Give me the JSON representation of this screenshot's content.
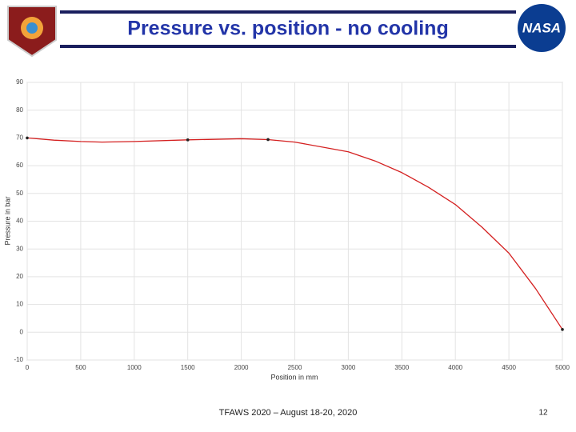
{
  "header": {
    "title": "Pressure vs. position - no cooling",
    "logo_right": "NASA"
  },
  "footer": {
    "text": "TFAWS 2020 – August 18-20, 2020",
    "page": "12"
  },
  "chart_data": {
    "type": "line",
    "xlabel": "Position in mm",
    "ylabel": "Pressure in bar",
    "series": [
      {
        "color": "#d42020",
        "x": [
          0,
          250,
          500,
          700,
          1000,
          1500,
          2000,
          2250,
          2500,
          3000,
          3250,
          3500,
          3750,
          4000,
          4250,
          4500,
          4750,
          5000
        ],
        "values": [
          70,
          69.2,
          68.7,
          68.5,
          68.7,
          69.3,
          69.7,
          69.4,
          68.5,
          65,
          61.7,
          57.5,
          52.2,
          46,
          37.8,
          28.5,
          15.7,
          1
        ]
      },
      {
        "color": "#222222",
        "markers": true,
        "x": [
          0,
          1500,
          2250,
          5000
        ],
        "values": [
          70,
          69.3,
          69.4,
          1
        ]
      }
    ],
    "xlim": [
      0,
      5000
    ],
    "xticks": [
      0,
      500,
      1000,
      1500,
      2000,
      2500,
      3000,
      3500,
      4000,
      4500,
      5000
    ],
    "ylim": [
      -10,
      90
    ],
    "yticks": [
      -10,
      0,
      10,
      20,
      30,
      40,
      50,
      60,
      70,
      80,
      90
    ],
    "grid": true
  }
}
